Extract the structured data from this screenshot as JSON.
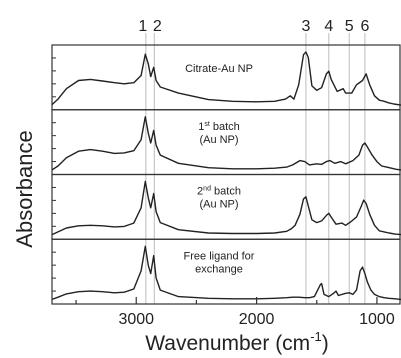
{
  "chart_data": {
    "type": "line",
    "xlabel": "Wavenumber (cm",
    "xlabel_sup": "-1",
    "xlabel_end": ")",
    "ylabel": "Absorbance",
    "xlim": [
      3700,
      800
    ],
    "x_reversed": true,
    "xticks": [
      {
        "value": 3000,
        "label": "3000"
      },
      {
        "value": 2000,
        "label": "2000"
      },
      {
        "value": 1000,
        "label": "1000"
      }
    ],
    "reference_lines": [
      {
        "label": "1",
        "x": 2920
      },
      {
        "label": "2",
        "x": 2850
      },
      {
        "label": "3",
        "x": 1590
      },
      {
        "label": "4",
        "x": 1400
      },
      {
        "label": "5",
        "x": 1230
      },
      {
        "label": "6",
        "x": 1100
      }
    ],
    "panels": [
      {
        "label_lines": [
          "Citrate-Au NP"
        ],
        "points": [
          [
            3700,
            0.04
          ],
          [
            3650,
            0.14
          ],
          [
            3580,
            0.33
          ],
          [
            3480,
            0.48
          ],
          [
            3380,
            0.5
          ],
          [
            3280,
            0.47
          ],
          [
            3180,
            0.44
          ],
          [
            3100,
            0.42
          ],
          [
            3020,
            0.44
          ],
          [
            2960,
            0.57
          ],
          [
            2925,
            0.96
          ],
          [
            2900,
            0.78
          ],
          [
            2880,
            0.55
          ],
          [
            2855,
            0.72
          ],
          [
            2835,
            0.48
          ],
          [
            2800,
            0.36
          ],
          [
            2650,
            0.25
          ],
          [
            2400,
            0.13
          ],
          [
            2200,
            0.1
          ],
          [
            2000,
            0.09
          ],
          [
            1850,
            0.1
          ],
          [
            1760,
            0.14
          ],
          [
            1720,
            0.2
          ],
          [
            1690,
            0.14
          ],
          [
            1650,
            0.4
          ],
          [
            1610,
            0.95
          ],
          [
            1590,
            1.0
          ],
          [
            1570,
            0.9
          ],
          [
            1540,
            0.38
          ],
          [
            1500,
            0.3
          ],
          [
            1460,
            0.35
          ],
          [
            1420,
            0.6
          ],
          [
            1400,
            0.65
          ],
          [
            1380,
            0.5
          ],
          [
            1330,
            0.28
          ],
          [
            1280,
            0.33
          ],
          [
            1260,
            0.25
          ],
          [
            1210,
            0.25
          ],
          [
            1170,
            0.4
          ],
          [
            1120,
            0.48
          ],
          [
            1090,
            0.6
          ],
          [
            1060,
            0.4
          ],
          [
            1020,
            0.2
          ],
          [
            980,
            0.12
          ],
          [
            940,
            0.1
          ],
          [
            900,
            0.07
          ],
          [
            860,
            0.05
          ],
          [
            800,
            0.03
          ]
        ]
      },
      {
        "label_lines": [
          "1st batch",
          "(Au NP)"
        ],
        "label_sup": "st",
        "points": [
          [
            3700,
            0.03
          ],
          [
            3650,
            0.1
          ],
          [
            3580,
            0.25
          ],
          [
            3480,
            0.37
          ],
          [
            3380,
            0.4
          ],
          [
            3280,
            0.37
          ],
          [
            3180,
            0.33
          ],
          [
            3100,
            0.34
          ],
          [
            3020,
            0.38
          ],
          [
            2960,
            0.58
          ],
          [
            2925,
            1.0
          ],
          [
            2900,
            0.7
          ],
          [
            2880,
            0.52
          ],
          [
            2855,
            0.75
          ],
          [
            2835,
            0.48
          ],
          [
            2800,
            0.3
          ],
          [
            2650,
            0.15
          ],
          [
            2400,
            0.07
          ],
          [
            2200,
            0.05
          ],
          [
            2000,
            0.05
          ],
          [
            1850,
            0.06
          ],
          [
            1750,
            0.08
          ],
          [
            1700,
            0.12
          ],
          [
            1640,
            0.2
          ],
          [
            1600,
            0.18
          ],
          [
            1560,
            0.12
          ],
          [
            1500,
            0.14
          ],
          [
            1460,
            0.13
          ],
          [
            1420,
            0.18
          ],
          [
            1390,
            0.2
          ],
          [
            1350,
            0.15
          ],
          [
            1300,
            0.18
          ],
          [
            1260,
            0.14
          ],
          [
            1200,
            0.2
          ],
          [
            1150,
            0.3
          ],
          [
            1120,
            0.48
          ],
          [
            1100,
            0.52
          ],
          [
            1080,
            0.45
          ],
          [
            1040,
            0.3
          ],
          [
            1000,
            0.18
          ],
          [
            960,
            0.1
          ],
          [
            920,
            0.08
          ],
          [
            880,
            0.06
          ],
          [
            840,
            0.04
          ],
          [
            800,
            0.03
          ]
        ]
      },
      {
        "label_lines": [
          "2nd batch",
          "(Au NP)"
        ],
        "label_sup": "nd",
        "points": [
          [
            3700,
            0.03
          ],
          [
            3650,
            0.08
          ],
          [
            3580,
            0.15
          ],
          [
            3480,
            0.19
          ],
          [
            3380,
            0.2
          ],
          [
            3280,
            0.19
          ],
          [
            3180,
            0.17
          ],
          [
            3100,
            0.18
          ],
          [
            3020,
            0.24
          ],
          [
            2960,
            0.52
          ],
          [
            2925,
            1.0
          ],
          [
            2900,
            0.7
          ],
          [
            2880,
            0.52
          ],
          [
            2855,
            0.78
          ],
          [
            2835,
            0.45
          ],
          [
            2800,
            0.25
          ],
          [
            2650,
            0.12
          ],
          [
            2400,
            0.06
          ],
          [
            2200,
            0.05
          ],
          [
            2000,
            0.05
          ],
          [
            1850,
            0.06
          ],
          [
            1750,
            0.09
          ],
          [
            1710,
            0.14
          ],
          [
            1680,
            0.2
          ],
          [
            1640,
            0.4
          ],
          [
            1610,
            0.68
          ],
          [
            1590,
            0.72
          ],
          [
            1570,
            0.55
          ],
          [
            1540,
            0.3
          ],
          [
            1500,
            0.25
          ],
          [
            1460,
            0.28
          ],
          [
            1420,
            0.38
          ],
          [
            1400,
            0.42
          ],
          [
            1380,
            0.35
          ],
          [
            1340,
            0.22
          ],
          [
            1290,
            0.24
          ],
          [
            1260,
            0.2
          ],
          [
            1220,
            0.26
          ],
          [
            1170,
            0.35
          ],
          [
            1130,
            0.55
          ],
          [
            1110,
            0.66
          ],
          [
            1090,
            0.6
          ],
          [
            1060,
            0.4
          ],
          [
            1020,
            0.2
          ],
          [
            980,
            0.1
          ],
          [
            940,
            0.08
          ],
          [
            900,
            0.06
          ],
          [
            850,
            0.04
          ],
          [
            800,
            0.03
          ]
        ]
      },
      {
        "label_lines": [
          "Free ligand for",
          "exchange"
        ],
        "points": [
          [
            3700,
            0.03
          ],
          [
            3650,
            0.07
          ],
          [
            3580,
            0.13
          ],
          [
            3480,
            0.17
          ],
          [
            3380,
            0.18
          ],
          [
            3280,
            0.17
          ],
          [
            3180,
            0.15
          ],
          [
            3100,
            0.16
          ],
          [
            3020,
            0.22
          ],
          [
            2960,
            0.55
          ],
          [
            2925,
            1.0
          ],
          [
            2900,
            0.65
          ],
          [
            2880,
            0.5
          ],
          [
            2855,
            0.83
          ],
          [
            2835,
            0.42
          ],
          [
            2800,
            0.2
          ],
          [
            2650,
            0.08
          ],
          [
            2400,
            0.05
          ],
          [
            2200,
            0.04
          ],
          [
            2000,
            0.04
          ],
          [
            1850,
            0.05
          ],
          [
            1750,
            0.06
          ],
          [
            1700,
            0.07
          ],
          [
            1650,
            0.07
          ],
          [
            1600,
            0.06
          ],
          [
            1560,
            0.06
          ],
          [
            1520,
            0.08
          ],
          [
            1470,
            0.3
          ],
          [
            1460,
            0.32
          ],
          [
            1440,
            0.12
          ],
          [
            1400,
            0.08
          ],
          [
            1360,
            0.14
          ],
          [
            1340,
            0.18
          ],
          [
            1320,
            0.1
          ],
          [
            1260,
            0.14
          ],
          [
            1230,
            0.15
          ],
          [
            1200,
            0.12
          ],
          [
            1170,
            0.2
          ],
          [
            1140,
            0.55
          ],
          [
            1120,
            0.62
          ],
          [
            1100,
            0.5
          ],
          [
            1080,
            0.35
          ],
          [
            1050,
            0.2
          ],
          [
            1020,
            0.12
          ],
          [
            980,
            0.08
          ],
          [
            940,
            0.06
          ],
          [
            900,
            0.05
          ],
          [
            850,
            0.04
          ],
          [
            800,
            0.03
          ]
        ]
      }
    ]
  }
}
